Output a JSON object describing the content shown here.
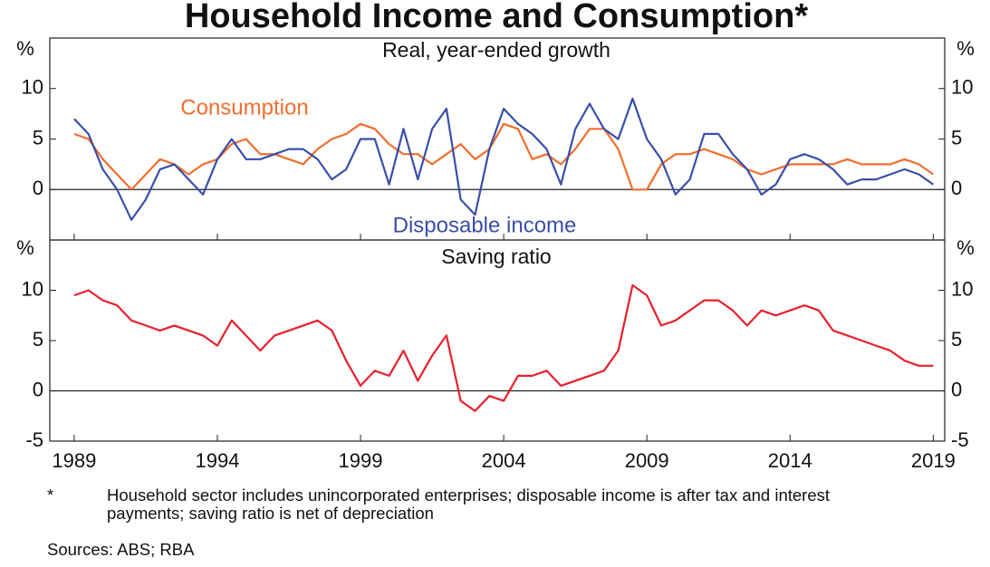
{
  "title": "Household Income and Consumption*",
  "footnote": {
    "marker": "*",
    "text": "Household sector includes unincorporated enterprises; disposable income is after tax and interest payments; saving ratio is net of depreciation"
  },
  "sources": "Sources: ABS; RBA",
  "chart_data": [
    {
      "type": "line",
      "subtitle": "Real, year-ended growth",
      "unit": "%",
      "x": [
        1989,
        1989.5,
        1990,
        1990.5,
        1991,
        1991.5,
        1992,
        1992.5,
        1993,
        1993.5,
        1994,
        1994.5,
        1995,
        1995.5,
        1996,
        1996.5,
        1997,
        1997.5,
        1998,
        1998.5,
        1999,
        1999.5,
        2000,
        2000.5,
        2001,
        2001.5,
        2002,
        2002.5,
        2003,
        2003.5,
        2004,
        2004.5,
        2005,
        2005.5,
        2006,
        2006.5,
        2007,
        2007.5,
        2008,
        2008.5,
        2009,
        2009.5,
        2010,
        2010.5,
        2011,
        2011.5,
        2012,
        2012.5,
        2013,
        2013.5,
        2014,
        2014.5,
        2015,
        2015.5,
        2016,
        2016.5,
        2017,
        2017.5,
        2018,
        2018.5,
        2019
      ],
      "series": [
        {
          "name": "Consumption",
          "color": "#f26d2d",
          "values": [
            5.5,
            5,
            3,
            1.5,
            0,
            1.5,
            3,
            2.5,
            1.5,
            2.5,
            3,
            4.5,
            5,
            3.5,
            3.5,
            3,
            2.5,
            4,
            5,
            5.5,
            6.5,
            6,
            4.5,
            3.5,
            3.5,
            2.5,
            3.5,
            4.5,
            3,
            4,
            6.5,
            6,
            3,
            3.5,
            2.5,
            4,
            6,
            6,
            4,
            0,
            0,
            2.5,
            3.5,
            3.5,
            4,
            3.5,
            3,
            2,
            1.5,
            2,
            2.5,
            2.5,
            2.5,
            2.5,
            3,
            2.5,
            2.5,
            2.5,
            3,
            2.5,
            1.5
          ]
        },
        {
          "name": "Disposable income",
          "color": "#3a4fa8",
          "values": [
            7,
            5.5,
            2,
            0,
            -3,
            -1,
            2,
            2.5,
            1,
            -0.5,
            3,
            5,
            3,
            3,
            3.5,
            4,
            4,
            3,
            1,
            2,
            5,
            5,
            0.5,
            6,
            1,
            6,
            8,
            -1,
            -2.5,
            4,
            8,
            6.5,
            5.5,
            4,
            0.5,
            6,
            8.5,
            6,
            5,
            9,
            5,
            3,
            -0.5,
            1,
            5.5,
            5.5,
            3.5,
            2,
            -0.5,
            0.5,
            3,
            3.5,
            3,
            2,
            0.5,
            1,
            1,
            1.5,
            2,
            1.5,
            0.5
          ]
        }
      ],
      "xlim": [
        1988.15,
        2019.4
      ],
      "ylim": [
        -5,
        15
      ],
      "yticks": [
        0,
        5,
        10
      ],
      "zero_line": true
    },
    {
      "type": "line",
      "subtitle": "Saving ratio",
      "unit": "%",
      "x": [
        1989,
        1989.5,
        1990,
        1990.5,
        1991,
        1991.5,
        1992,
        1992.5,
        1993,
        1993.5,
        1994,
        1994.5,
        1995,
        1995.5,
        1996,
        1996.5,
        1997,
        1997.5,
        1998,
        1998.5,
        1999,
        1999.5,
        2000,
        2000.5,
        2001,
        2001.5,
        2002,
        2002.5,
        2003,
        2003.5,
        2004,
        2004.5,
        2005,
        2005.5,
        2006,
        2006.5,
        2007,
        2007.5,
        2008,
        2008.5,
        2009,
        2009.5,
        2010,
        2010.5,
        2011,
        2011.5,
        2012,
        2012.5,
        2013,
        2013.5,
        2014,
        2014.5,
        2015,
        2015.5,
        2016,
        2016.5,
        2017,
        2017.5,
        2018,
        2018.5,
        2019
      ],
      "color": "#e8202c",
      "values": [
        9.5,
        10,
        9,
        8.5,
        7,
        6.5,
        6,
        6.5,
        6,
        5.5,
        4.5,
        7,
        5.5,
        4,
        5.5,
        6,
        6.5,
        7,
        6,
        3,
        0.5,
        2,
        1.5,
        4,
        1,
        3.5,
        5.5,
        -1,
        -2,
        -0.5,
        -1,
        1.5,
        1.5,
        2,
        0.5,
        1,
        1.5,
        2,
        4,
        10.5,
        9.5,
        6.5,
        7,
        8,
        9,
        9,
        8,
        6.5,
        8,
        7.5,
        8,
        8.5,
        8,
        6,
        5.5,
        5,
        4.5,
        4,
        3,
        2.5,
        2.5
      ],
      "xlim": [
        1988.15,
        2019.4
      ],
      "ylim": [
        -5,
        15
      ],
      "yticks": [
        -5,
        0,
        5,
        10
      ],
      "zero_line": true,
      "xticks": [
        1989,
        1994,
        1999,
        2004,
        2009,
        2014,
        2019
      ]
    }
  ]
}
